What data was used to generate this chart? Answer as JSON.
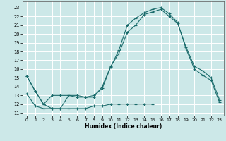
{
  "title": "",
  "xlabel": "Humidex (Indice chaleur)",
  "background_color": "#cce8e8",
  "grid_color": "#ffffff",
  "line_color": "#1a6b6b",
  "xlim": [
    -0.5,
    23.5
  ],
  "ylim": [
    10.7,
    23.7
  ],
  "xticks": [
    0,
    1,
    2,
    3,
    4,
    5,
    6,
    7,
    8,
    9,
    10,
    11,
    12,
    13,
    14,
    15,
    16,
    17,
    18,
    19,
    20,
    21,
    22,
    23
  ],
  "yticks": [
    11,
    12,
    13,
    14,
    15,
    16,
    17,
    18,
    19,
    20,
    21,
    22,
    23
  ],
  "curve1_x": [
    0,
    1,
    2,
    3,
    4,
    5,
    6,
    7,
    8,
    9,
    10,
    11,
    12,
    13,
    14,
    15,
    16,
    17,
    18,
    19,
    20,
    21,
    22,
    23
  ],
  "curve1_y": [
    15.2,
    13.5,
    12.0,
    11.5,
    11.5,
    13.0,
    13.0,
    12.8,
    13.0,
    13.8,
    16.2,
    18.2,
    21.0,
    21.8,
    22.4,
    22.8,
    23.0,
    22.3,
    21.3,
    18.3,
    16.0,
    15.3,
    14.7,
    12.2
  ],
  "curve2_x": [
    0,
    1,
    2,
    3,
    4,
    5,
    6,
    7,
    8,
    9,
    10,
    11,
    12,
    13,
    14,
    15,
    16,
    17,
    18,
    19,
    20,
    21,
    22,
    23
  ],
  "curve2_y": [
    15.2,
    13.5,
    12.0,
    13.0,
    13.0,
    13.0,
    12.8,
    12.8,
    12.8,
    14.0,
    16.3,
    17.8,
    20.2,
    21.0,
    22.2,
    22.5,
    22.8,
    22.0,
    21.2,
    18.5,
    16.3,
    15.8,
    15.0,
    12.5
  ],
  "curve3_x": [
    0,
    1,
    2,
    3,
    4,
    5,
    6,
    7,
    8,
    9,
    10,
    11,
    12,
    13,
    14,
    15
  ],
  "curve3_y": [
    13.2,
    11.8,
    11.5,
    11.5,
    11.5,
    11.5,
    11.5,
    11.5,
    11.8,
    11.8,
    12.0,
    12.0,
    12.0,
    12.0,
    12.0,
    12.0
  ]
}
